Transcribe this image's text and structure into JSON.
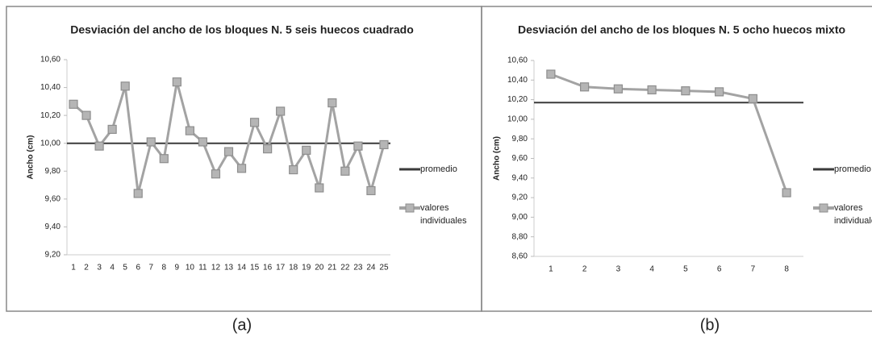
{
  "chart_data": [
    {
      "type": "line",
      "title": "Desviación del ancho de los bloques N. 5 seis huecos cuadrado",
      "ylabel": "Ancho (cm)",
      "caption": "(a)",
      "categories": [
        1,
        2,
        3,
        4,
        5,
        6,
        7,
        8,
        9,
        10,
        11,
        12,
        13,
        14,
        15,
        16,
        17,
        18,
        19,
        20,
        21,
        22,
        23,
        24,
        25
      ],
      "series": [
        {
          "name": "promedio",
          "color": "#3a3a3a",
          "values": [
            10,
            10,
            10,
            10,
            10,
            10,
            10,
            10,
            10,
            10,
            10,
            10,
            10,
            10,
            10,
            10,
            10,
            10,
            10,
            10,
            10,
            10,
            10,
            10,
            10
          ]
        },
        {
          "name": "valores individuales",
          "color": "#a3a3a3",
          "values": [
            10.28,
            10.2,
            9.98,
            10.1,
            10.41,
            9.64,
            10.01,
            9.89,
            10.44,
            10.09,
            10.01,
            9.78,
            9.94,
            9.82,
            10.15,
            9.96,
            10.23,
            9.81,
            9.95,
            9.68,
            10.29,
            9.8,
            9.98,
            9.66,
            9.99
          ]
        }
      ],
      "ylim": [
        9.2,
        10.6
      ],
      "yticks": [
        {
          "value": 9.2,
          "label": "9,20"
        },
        {
          "value": 9.4,
          "label": "9,40"
        },
        {
          "value": 9.6,
          "label": "9,60"
        },
        {
          "value": 9.8,
          "label": "9,80"
        },
        {
          "value": 10,
          "label": "10,00"
        },
        {
          "value": 10.2,
          "label": "10,20"
        },
        {
          "value": 10.4,
          "label": "10,40"
        },
        {
          "value": 10.6,
          "label": "10,60"
        }
      ]
    },
    {
      "type": "line",
      "title": "Desviación del ancho de los bloques N. 5 ocho  huecos mixto",
      "ylabel": "Ancho (cm)",
      "caption": "(b)",
      "categories": [
        1,
        2,
        3,
        4,
        5,
        6,
        7,
        8
      ],
      "series": [
        {
          "name": "promedio",
          "color": "#3a3a3a",
          "values": [
            10.17,
            10.17,
            10.17,
            10.17,
            10.17,
            10.17,
            10.17,
            10.17
          ]
        },
        {
          "name": "valores individuales",
          "color": "#a3a3a3",
          "values": [
            10.46,
            10.33,
            10.31,
            10.3,
            10.29,
            10.28,
            10.21,
            9.25
          ]
        }
      ],
      "ylim": [
        8.6,
        10.6
      ],
      "yticks": [
        {
          "value": 8.6,
          "label": "8,60"
        },
        {
          "value": 8.8,
          "label": "8,80"
        },
        {
          "value": 9,
          "label": "9,00"
        },
        {
          "value": 9.2,
          "label": "9,20"
        },
        {
          "value": 9.4,
          "label": "9,40"
        },
        {
          "value": 9.6,
          "label": "9,60"
        },
        {
          "value": 9.8,
          "label": "9,80"
        },
        {
          "value": 10,
          "label": "10,00"
        },
        {
          "value": 10.2,
          "label": "10,20"
        },
        {
          "value": 10.4,
          "label": "10,40"
        },
        {
          "value": 10.6,
          "label": "10,60"
        }
      ]
    }
  ]
}
